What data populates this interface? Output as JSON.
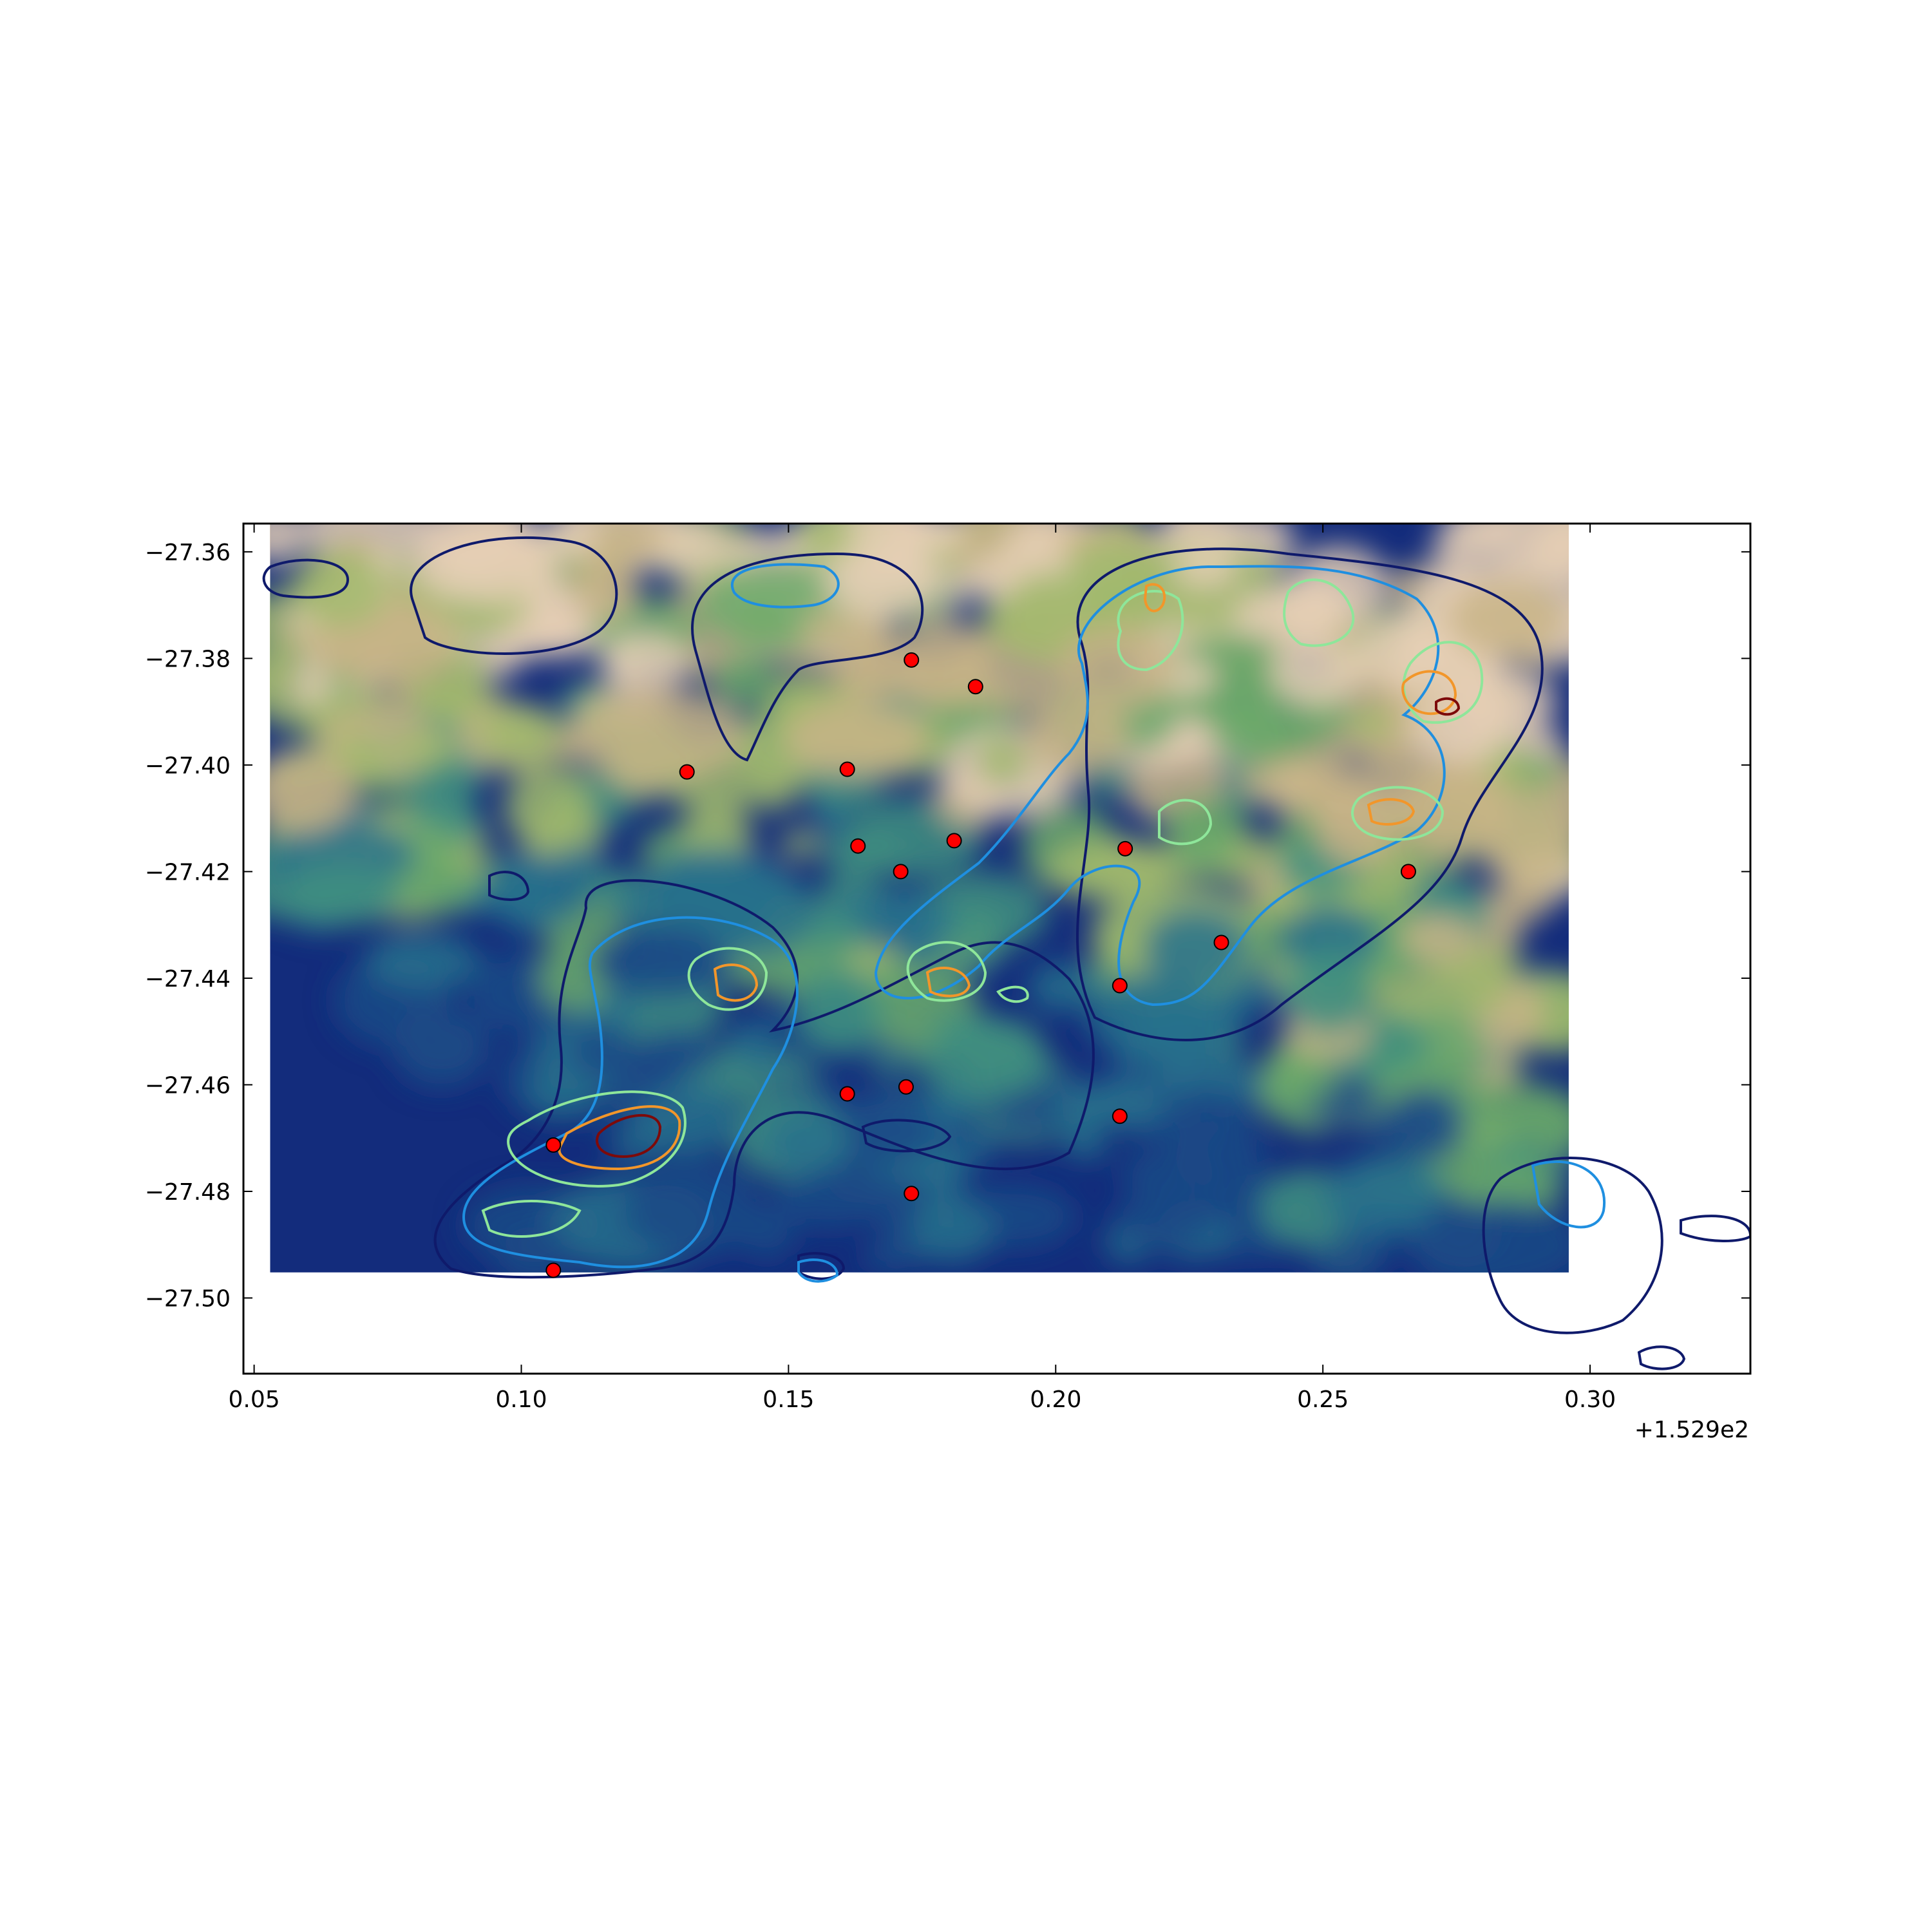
{
  "chart_data": {
    "type": "scatter",
    "title": "",
    "xlabel": "",
    "ylabel": "",
    "x_offset_label": "+1.529e2",
    "xlim": [
      0.048,
      0.33
    ],
    "ylim": [
      -27.5142,
      -27.3547
    ],
    "x_ticks": [
      0.05,
      0.1,
      0.15,
      0.2,
      0.25,
      0.3
    ],
    "x_tick_labels": [
      "0.05",
      "0.10",
      "0.15",
      "0.20",
      "0.25",
      "0.30"
    ],
    "y_ticks": [
      -27.36,
      -27.38,
      -27.4,
      -27.42,
      -27.44,
      -27.46,
      -27.48,
      -27.5
    ],
    "y_tick_labels": [
      "−27.36",
      "−27.38",
      "−27.40",
      "−27.42",
      "−27.44",
      "−27.46",
      "−27.48",
      "−27.50"
    ],
    "grid": false,
    "legend": "none",
    "background_image": {
      "extent_x": [
        0.053,
        0.296
      ],
      "extent_y": [
        -27.4952,
        -27.3547
      ],
      "colormap": "gist_earth",
      "colors": [
        "#132c7c",
        "#1b4a86",
        "#27708c",
        "#3f8f80",
        "#6aa86a",
        "#a0b86c",
        "#c8b487",
        "#e5cfb5"
      ]
    },
    "contour_levels": [
      {
        "level": 1,
        "color": "#0f1a6b"
      },
      {
        "level": 2,
        "color": "#1f8fe0"
      },
      {
        "level": 3,
        "color": "#8ee69a"
      },
      {
        "level": 4,
        "color": "#f2962a"
      },
      {
        "level": 5,
        "color": "#7d0a0a"
      }
    ],
    "series": [
      {
        "marker_color": "#ff0000",
        "points": [
          {
            "x": 0.173,
            "y": -27.3803
          },
          {
            "x": 0.185,
            "y": -27.3853
          },
          {
            "x": 0.131,
            "y": -27.4013
          },
          {
            "x": 0.161,
            "y": -27.4008
          },
          {
            "x": 0.163,
            "y": -27.4152
          },
          {
            "x": 0.181,
            "y": -27.4142
          },
          {
            "x": 0.213,
            "y": -27.4157
          },
          {
            "x": 0.171,
            "y": -27.42
          },
          {
            "x": 0.266,
            "y": -27.42
          },
          {
            "x": 0.231,
            "y": -27.4333
          },
          {
            "x": 0.212,
            "y": -27.4414
          },
          {
            "x": 0.161,
            "y": -27.4617
          },
          {
            "x": 0.172,
            "y": -27.4604
          },
          {
            "x": 0.212,
            "y": -27.4659
          },
          {
            "x": 0.106,
            "y": -27.4713
          },
          {
            "x": 0.173,
            "y": -27.4804
          },
          {
            "x": 0.106,
            "y": -27.4948
          }
        ]
      }
    ]
  }
}
